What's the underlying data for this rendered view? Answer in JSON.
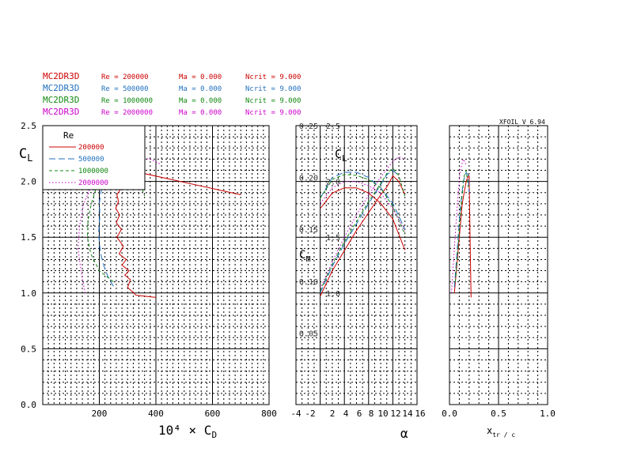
{
  "header": {
    "runs": [
      {
        "airfoil": "MC2DR3D",
        "re": "Re = 200000",
        "ma": "Ma = 0.000",
        "ncrit": "Ncrit = 9.000",
        "color": "#cc0000"
      },
      {
        "airfoil": "MC2DR3D",
        "re": "Re = 500000",
        "ma": "Ma = 0.000",
        "ncrit": "Ncrit = 9.000",
        "color": "#1f6fbf"
      },
      {
        "airfoil": "MC2DR3D",
        "re": "Re = 1000000",
        "ma": "Ma = 0.000",
        "ncrit": "Ncrit = 9.000",
        "color": "#118811"
      },
      {
        "airfoil": "MC2DR3D",
        "re": "Re = 2000000",
        "ma": "Ma = 0.000",
        "ncrit": "Ncrit = 9.000",
        "color": "#cc00cc"
      }
    ],
    "version": "XFOIL V 6.94"
  },
  "legend": {
    "title": "Re",
    "entries": [
      "200000",
      "500000",
      "1000000",
      "2000000"
    ]
  },
  "chart_data": [
    {
      "id": "polar",
      "type": "line",
      "xlabel": "10⁴ × C_D",
      "ylabel": "C_L",
      "xlim": [
        0,
        800
      ],
      "ylim": [
        0,
        2.5
      ],
      "x_ticks": [
        "200",
        "400",
        "600",
        "800"
      ],
      "y_ticks": [
        "0.0",
        "0.5",
        "1.0",
        "1.5",
        "2.0",
        "2.5"
      ],
      "legend_position": "top-left",
      "series": [
        {
          "name": "200000",
          "color": "#cc0000",
          "dash": "solid",
          "x": [
            400,
            330,
            300,
            310,
            290,
            305,
            280,
            295,
            270,
            285,
            262,
            278,
            260,
            272,
            258,
            268,
            262,
            275,
            300,
            330,
            360,
            700
          ],
          "y": [
            0.96,
            0.98,
            1.05,
            1.12,
            1.16,
            1.2,
            1.25,
            1.3,
            1.35,
            1.42,
            1.5,
            1.57,
            1.63,
            1.7,
            1.76,
            1.82,
            1.88,
            1.93,
            2.0,
            2.04,
            2.07,
            1.88
          ]
        },
        {
          "name": "500000",
          "color": "#1f6fbf",
          "dash": "long",
          "x": [
            250,
            230,
            215,
            205,
            200,
            198,
            202,
            200,
            205,
            215,
            240,
            290,
            330
          ],
          "y": [
            1.06,
            1.15,
            1.25,
            1.35,
            1.45,
            1.55,
            1.7,
            1.8,
            1.9,
            1.98,
            2.05,
            2.08,
            2.05
          ]
        },
        {
          "name": "1000000",
          "color": "#118811",
          "dash": "short",
          "x": [
            250,
            200,
            170,
            158,
            160,
            172,
            190,
            230,
            290,
            340,
            360
          ],
          "y": [
            1.1,
            1.2,
            1.35,
            1.5,
            1.65,
            1.8,
            1.95,
            2.05,
            2.1,
            2.02,
            1.87
          ]
        },
        {
          "name": "2000000",
          "color": "#cc00cc",
          "dash": "dot",
          "x": [
            150,
            135,
            125,
            130,
            145,
            170,
            210,
            270,
            320,
            380,
            420
          ],
          "y": [
            1.0,
            1.2,
            1.4,
            1.6,
            1.8,
            1.95,
            2.1,
            2.2,
            2.22,
            2.2,
            2.15
          ]
        }
      ]
    },
    {
      "id": "alpha",
      "type": "line",
      "xlabel": "α",
      "ylabel_cl": "C_L",
      "ylabel_cm": "C_M",
      "xlim": [
        -4,
        16
      ],
      "ylim_cl": [
        0,
        2.5
      ],
      "ylim_cm": [
        0.0,
        0.25
      ],
      "x_ticks": [
        "-4",
        "-2",
        "2",
        "4",
        "6",
        "8",
        "10",
        "12",
        "14",
        "16"
      ],
      "cl_ticks": [
        "1.0",
        "1.5",
        "2.0",
        "2.5"
      ],
      "cm_ticks": [
        "0.05",
        "0.10",
        "0.15",
        "0.20",
        "0.25"
      ],
      "cl_series": [
        {
          "name": "200000",
          "color": "#cc0000",
          "dash": "solid",
          "alpha": [
            0,
            2,
            4,
            6,
            8,
            10,
            11,
            12,
            13,
            14
          ],
          "cl": [
            0.97,
            1.2,
            1.38,
            1.56,
            1.72,
            1.88,
            1.95,
            2.05,
            2.0,
            1.88
          ]
        },
        {
          "name": "500000",
          "color": "#1f6fbf",
          "dash": "long",
          "alpha": [
            0,
            2,
            4,
            6,
            8,
            10,
            11,
            12,
            13
          ],
          "cl": [
            1.0,
            1.24,
            1.44,
            1.62,
            1.8,
            1.97,
            2.06,
            2.1,
            2.05
          ]
        },
        {
          "name": "1000000",
          "color": "#118811",
          "dash": "short",
          "alpha": [
            0,
            2,
            4,
            6,
            8,
            10,
            11,
            12,
            13,
            14
          ],
          "cl": [
            1.02,
            1.26,
            1.46,
            1.64,
            1.82,
            1.98,
            2.07,
            2.12,
            2.05,
            1.87
          ]
        },
        {
          "name": "2000000",
          "color": "#cc00cc",
          "dash": "dot",
          "alpha": [
            0,
            2,
            4,
            6,
            8,
            10,
            12,
            13,
            14
          ],
          "cl": [
            1.04,
            1.28,
            1.5,
            1.7,
            1.88,
            2.04,
            2.18,
            2.22,
            2.2
          ]
        }
      ],
      "cm_series": [
        {
          "name": "200000",
          "color": "#cc0000",
          "dash": "solid",
          "alpha": [
            0,
            2,
            4,
            6,
            8,
            10,
            12,
            14
          ],
          "cm": [
            0.17,
            0.185,
            0.19,
            0.19,
            0.185,
            0.175,
            0.16,
            0.13
          ]
        },
        {
          "name": "500000",
          "color": "#1f6fbf",
          "dash": "long",
          "alpha": [
            0,
            2,
            4,
            6,
            8,
            10,
            12,
            14
          ],
          "cm": [
            0.18,
            0.2,
            0.205,
            0.205,
            0.2,
            0.19,
            0.175,
            0.15
          ]
        },
        {
          "name": "1000000",
          "color": "#118811",
          "dash": "short",
          "alpha": [
            0,
            2,
            4,
            6,
            8,
            10,
            12,
            14
          ],
          "cm": [
            0.18,
            0.198,
            0.203,
            0.202,
            0.198,
            0.19,
            0.172,
            0.145
          ]
        },
        {
          "name": "2000000",
          "color": "#cc00cc",
          "dash": "dot",
          "alpha": [
            0,
            2,
            4,
            6,
            8,
            10,
            12,
            14
          ],
          "cm": [
            0.175,
            0.19,
            0.196,
            0.196,
            0.192,
            0.185,
            0.17,
            0.148
          ]
        }
      ]
    },
    {
      "id": "transition",
      "type": "line",
      "xlabel": "x_tr / c",
      "xlim": [
        0,
        1.0
      ],
      "ylim": [
        0,
        2.5
      ],
      "x_ticks": [
        "0.0",
        "0.5",
        "1.0"
      ],
      "series": [
        {
          "name": "200000",
          "color": "#cc0000",
          "dash": "solid",
          "x": [
            0.05,
            0.09,
            0.13,
            0.17,
            0.19,
            0.2,
            0.21,
            0.22
          ],
          "y": [
            1.0,
            1.4,
            1.8,
            2.0,
            2.05,
            2.05,
            1.5,
            0.96
          ]
        },
        {
          "name": "500000",
          "color": "#1f6fbf",
          "dash": "long",
          "x": [
            0.05,
            0.08,
            0.11,
            0.14,
            0.17,
            0.19,
            0.2
          ],
          "y": [
            1.05,
            1.4,
            1.75,
            2.0,
            2.08,
            2.06,
            1.9
          ]
        },
        {
          "name": "1000000",
          "color": "#118811",
          "dash": "short",
          "x": [
            0.06,
            0.09,
            0.12,
            0.15,
            0.17,
            0.19
          ],
          "y": [
            1.1,
            1.45,
            1.8,
            2.05,
            2.1,
            1.95
          ]
        },
        {
          "name": "2000000",
          "color": "#cc00cc",
          "dash": "dot",
          "x": [
            0.02,
            0.05,
            0.08,
            0.11,
            0.14,
            0.17
          ],
          "y": [
            1.0,
            1.4,
            1.8,
            2.1,
            2.2,
            2.15
          ]
        }
      ]
    }
  ]
}
